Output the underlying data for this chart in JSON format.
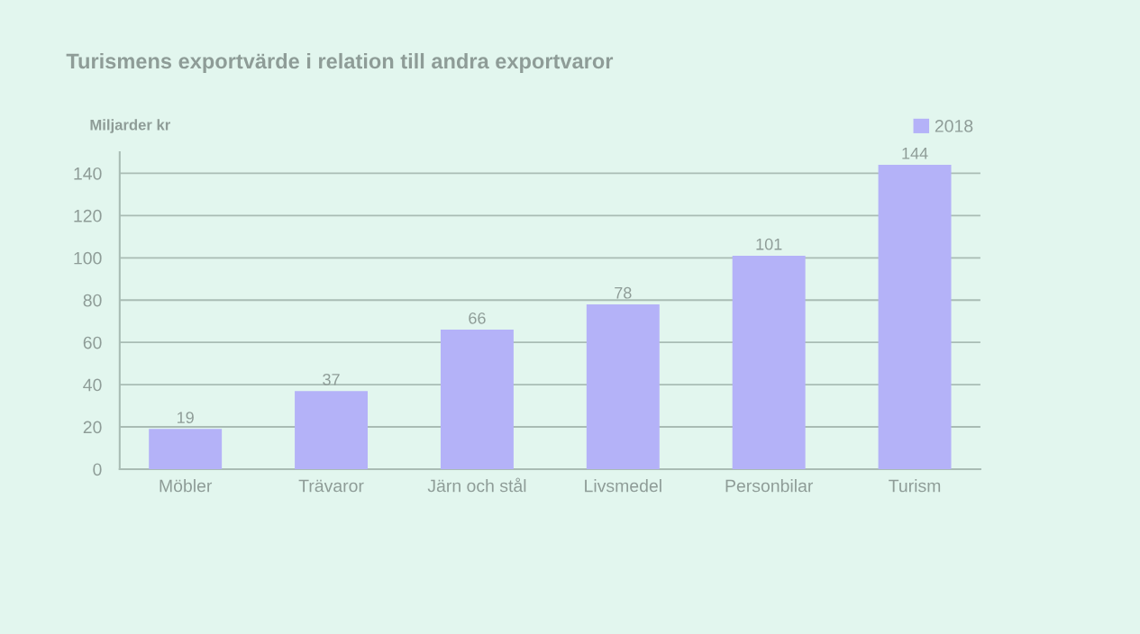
{
  "chart_data": {
    "type": "bar",
    "title": "Turismens exportvärde i relation till andra exportvaror",
    "ylabel": "Miljarder kr",
    "categories": [
      "Möbler",
      "Trävaror",
      "Järn och stål",
      "Livsmedel",
      "Personbilar",
      "Turism"
    ],
    "series": [
      {
        "name": "2018",
        "color": "#b4b2f8",
        "values": [
          19,
          37,
          66,
          78,
          101,
          144
        ]
      }
    ],
    "ylim": [
      0,
      150
    ],
    "yticks": [
      0,
      20,
      40,
      60,
      80,
      100,
      120,
      140
    ],
    "grid": "y",
    "legend": "top right",
    "data_labels": true
  }
}
